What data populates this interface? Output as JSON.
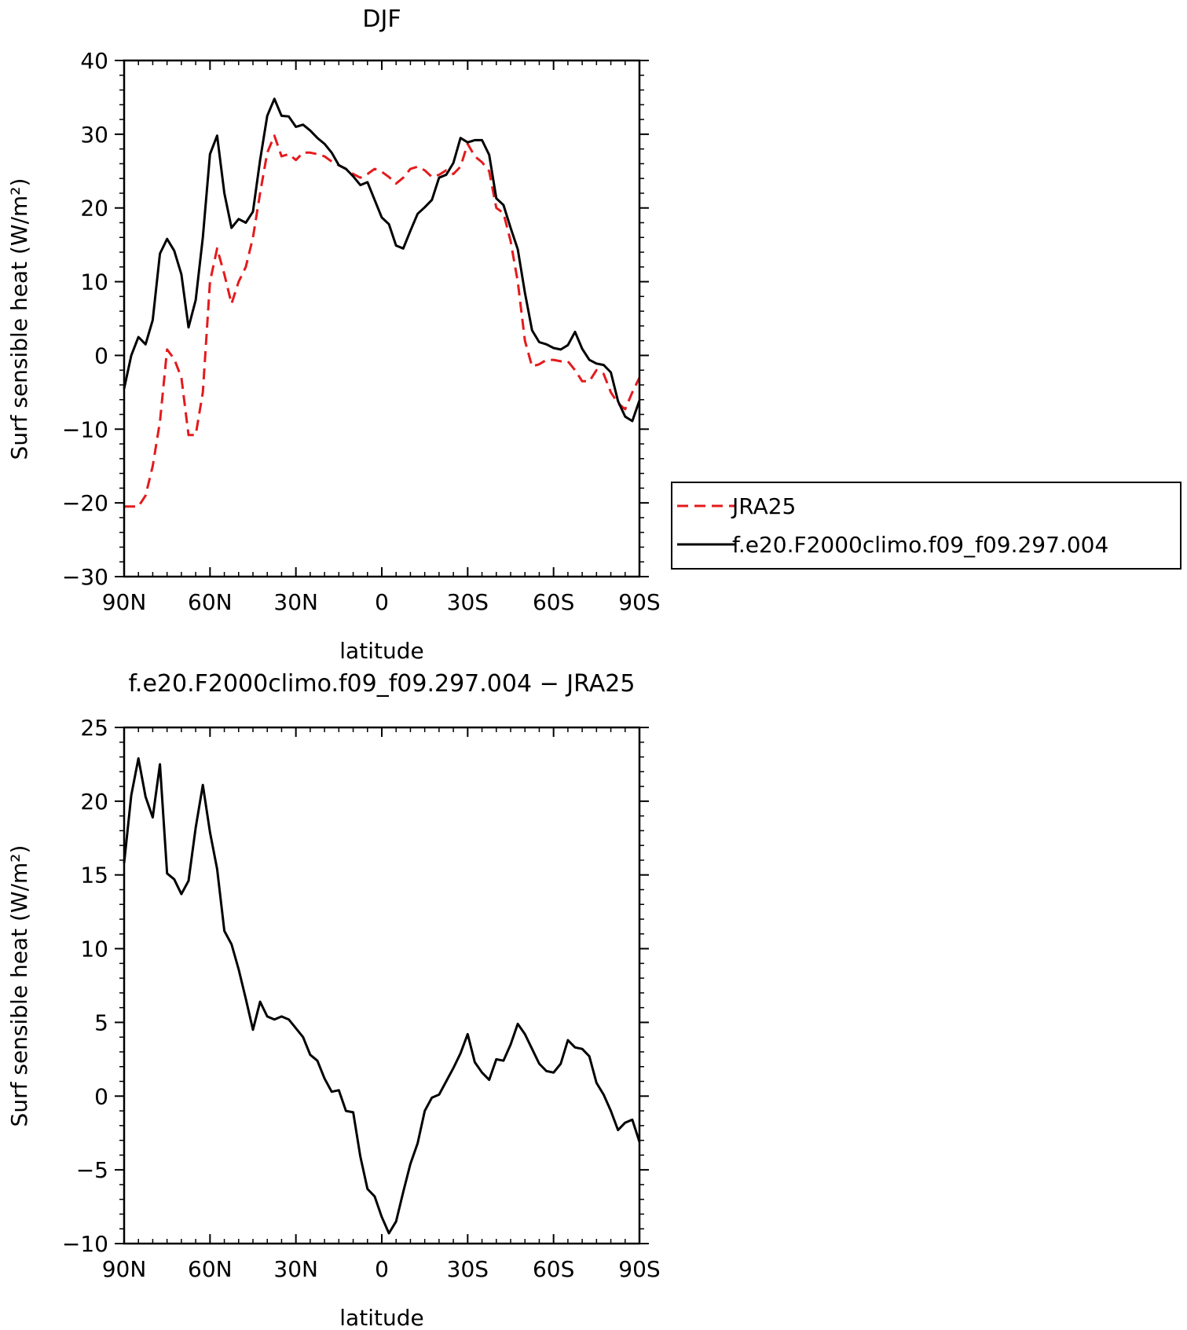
{
  "chart_data": [
    {
      "type": "line",
      "title": "DJF",
      "xlabel": "latitude",
      "ylabel": "Surf sensible heat (W/m²)",
      "ylim": [
        -30,
        40
      ],
      "yticks": [
        "−30",
        "−20",
        "−10",
        "0",
        "10",
        "20",
        "30",
        "40"
      ],
      "yticks_values": [
        -30,
        -20,
        -10,
        0,
        10,
        20,
        30,
        40
      ],
      "xlim": [
        90,
        -90
      ],
      "xticks": [
        "90N",
        "60N",
        "30N",
        "0",
        "30S",
        "60S",
        "90S"
      ],
      "xticks_values": [
        90,
        60,
        30,
        0,
        -30,
        -60,
        -90
      ],
      "legend": "right",
      "series": [
        {
          "name": "JRA25",
          "color": "#e41a1c",
          "dash": "dashed",
          "x": [
            90,
            87.5,
            85,
            82.5,
            80,
            77.5,
            75,
            72.5,
            70,
            67.5,
            65,
            62.5,
            60,
            57.5,
            55,
            52.5,
            50,
            47.5,
            45,
            42.5,
            40,
            37.5,
            35,
            32.5,
            30,
            27.5,
            25,
            22.5,
            20,
            17.5,
            15,
            12.5,
            10,
            7.5,
            5,
            2.5,
            0,
            -2.5,
            -5,
            -7.5,
            -10,
            -12.5,
            -15,
            -17.5,
            -20,
            -22.5,
            -25,
            -27.5,
            -30,
            -32.5,
            -35,
            -37.5,
            -40,
            -42.5,
            -45,
            -47.5,
            -50,
            -52.5,
            -55,
            -57.5,
            -60,
            -62.5,
            -65,
            -67.5,
            -70,
            -72.5,
            -75,
            -77.5,
            -80,
            -82.5,
            -85,
            -87.5,
            -90
          ],
          "y": [
            -20.5,
            -20.5,
            -20.5,
            -19,
            -15,
            -9,
            0.8,
            -0.5,
            -3,
            -10.8,
            -10.8,
            -5,
            10,
            14.5,
            11,
            7,
            10,
            12,
            16,
            22,
            27.5,
            29.8,
            27,
            27.3,
            26.5,
            27.5,
            27.5,
            27.3,
            27,
            26.3,
            25.8,
            25.3,
            24.6,
            24.1,
            24.6,
            25.3,
            24.9,
            24.2,
            23.3,
            24.1,
            25.3,
            25.6,
            25.1,
            24.2,
            24.5,
            25.1,
            24.6,
            25.6,
            28.7,
            27,
            26.2,
            25,
            20,
            19.3,
            15.5,
            10,
            2,
            -1.5,
            -1.2,
            -0.6,
            -0.6,
            -0.8,
            -0.8,
            -2,
            -3.5,
            -3.5,
            -2,
            -2.5,
            -5,
            -6.5,
            -7.3,
            -5,
            -3
          ]
        },
        {
          "name": "f.e20.F2000climo.f09_f09.297.004",
          "color": "#000000",
          "dash": "solid",
          "x": [
            90,
            87.5,
            85,
            82.5,
            80,
            77.5,
            75,
            72.5,
            70,
            67.5,
            65,
            62.5,
            60,
            57.5,
            55,
            52.5,
            50,
            47.5,
            45,
            42.5,
            40,
            37.5,
            35,
            32.5,
            30,
            27.5,
            25,
            22.5,
            20,
            17.5,
            15,
            12.5,
            10,
            7.5,
            5,
            2.5,
            0,
            -2.5,
            -5,
            -7.5,
            -10,
            -12.5,
            -15,
            -17.5,
            -20,
            -22.5,
            -25,
            -27.5,
            -30,
            -32.5,
            -35,
            -37.5,
            -40,
            -42.5,
            -45,
            -47.5,
            -50,
            -52.5,
            -55,
            -57.5,
            -60,
            -62.5,
            -65,
            -67.5,
            -70,
            -72.5,
            -75,
            -77.5,
            -80,
            -82.5,
            -85,
            -87.5,
            -90
          ],
          "y": [
            -4.5,
            0,
            2.5,
            1.5,
            4.8,
            13.8,
            15.8,
            14.2,
            11,
            3.8,
            7.5,
            16,
            27.3,
            29.8,
            22,
            17.3,
            18.5,
            18,
            19.5,
            26.5,
            32.5,
            34.8,
            32.5,
            32.4,
            31,
            31.3,
            30.5,
            29.5,
            28.7,
            27.5,
            25.8,
            25.3,
            24.3,
            23.1,
            23.5,
            21.1,
            18.7,
            17.8,
            14.9,
            14.5,
            16.9,
            19.2,
            20.1,
            21.1,
            24.1,
            24.5,
            26.1,
            29.5,
            28.9,
            29.2,
            29.2,
            27.2,
            21.3,
            20.4,
            17.3,
            14.4,
            8.5,
            3.4,
            1.8,
            1.5,
            1.0,
            0.8,
            1.4,
            3.2,
            0.9,
            -0.6,
            -1.1,
            -1.3,
            -2.3,
            -6.2,
            -8.3,
            -8.9,
            -6.1
          ]
        }
      ]
    },
    {
      "type": "line",
      "title": "f.e20.F2000climo.f09_f09.297.004 − JRA25",
      "xlabel": "latitude",
      "ylabel": "Surf sensible heat (W/m²)",
      "ylim": [
        -10,
        25
      ],
      "yticks": [
        "−10",
        "−5",
        "0",
        "5",
        "10",
        "15",
        "20",
        "25"
      ],
      "yticks_values": [
        -10,
        -5,
        0,
        5,
        10,
        15,
        20,
        25
      ],
      "xlim": [
        90,
        -90
      ],
      "xticks": [
        "90N",
        "60N",
        "30N",
        "0",
        "30S",
        "60S",
        "90S"
      ],
      "xticks_values": [
        90,
        60,
        30,
        0,
        -30,
        -60,
        -90
      ],
      "series": [
        {
          "color": "#000000",
          "dash": "solid",
          "x": [
            90,
            87.5,
            85,
            82.5,
            80,
            77.5,
            75,
            72.5,
            70,
            67.5,
            65,
            62.5,
            60,
            57.5,
            55,
            52.5,
            50,
            47.5,
            45,
            42.5,
            40,
            37.5,
            35,
            32.5,
            30,
            27.5,
            25,
            22.5,
            20,
            17.5,
            15,
            12.5,
            10,
            7.5,
            5,
            2.5,
            0,
            -2.5,
            -5,
            -7.5,
            -10,
            -12.5,
            -15,
            -17.5,
            -20,
            -22.5,
            -25,
            -27.5,
            -30,
            -32.5,
            -35,
            -37.5,
            -40,
            -42.5,
            -45,
            -47.5,
            -50,
            -52.5,
            -55,
            -57.5,
            -60,
            -62.5,
            -65,
            -67.5,
            -70,
            -72.5,
            -75,
            -77.5,
            -80,
            -82.5,
            -85,
            -87.5,
            -90
          ],
          "y": [
            15.8,
            20.4,
            22.9,
            20.3,
            18.9,
            22.5,
            15.1,
            14.7,
            13.7,
            14.6,
            18.2,
            21.1,
            17.9,
            15.4,
            11.2,
            10.3,
            8.6,
            6.6,
            4.5,
            6.4,
            5.4,
            5.2,
            5.4,
            5.2,
            4.6,
            4.0,
            2.8,
            2.4,
            1.2,
            0.3,
            0.4,
            -1.0,
            -1.1,
            -4.1,
            -6.3,
            -6.8,
            -8.2,
            -9.3,
            -8.5,
            -6.5,
            -4.6,
            -3.2,
            -1.0,
            -0.1,
            0.1,
            1.0,
            1.9,
            2.9,
            4.2,
            2.3,
            1.6,
            1.1,
            2.5,
            2.4,
            3.5,
            4.9,
            4.2,
            3.2,
            2.2,
            1.7,
            1.6,
            2.2,
            3.8,
            3.3,
            3.2,
            2.7,
            0.9,
            0.1,
            -1.0,
            -2.3,
            -1.8,
            -1.6,
            -3.1
          ]
        }
      ]
    }
  ]
}
